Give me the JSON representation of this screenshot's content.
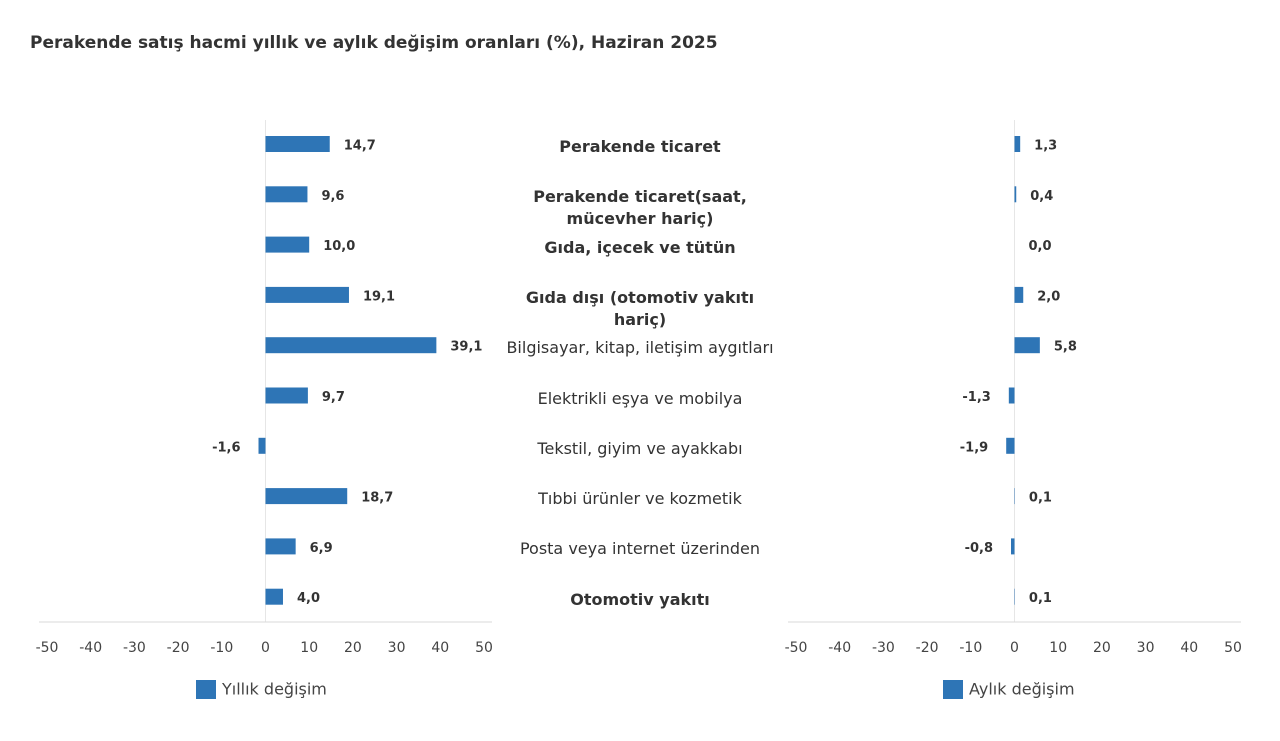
{
  "chart_data": {
    "type": "bar",
    "orientation": "horizontal",
    "title": "Perakende satış hacmi yıllık ve aylık değişim oranları (%), Haziran 2025",
    "categories": [
      "Perakende ticaret",
      "Perakende ticaret(saat, mücevher hariç)",
      "Gıda, içecek ve tütün",
      "Gıda dışı (otomotiv yakıtı hariç)",
      "Bilgisayar, kitap, iletişim aygıtları",
      "Elektrikli eşya ve mobilya",
      "Tekstil, giyim ve ayakkabı",
      "Tıbbi ürünler ve kozmetik",
      "Posta veya internet üzerinden",
      "Otomotiv yakıtı"
    ],
    "series": [
      {
        "name": "Yıllık değişim",
        "color": "#2e75b6",
        "values": [
          14.7,
          9.6,
          10.0,
          19.1,
          39.1,
          9.7,
          -1.6,
          18.7,
          6.9,
          4.0
        ],
        "value_labels": [
          "14,7",
          "9,6",
          "10,0",
          "19,1",
          "39,1",
          "9,7",
          "-1,6",
          "18,7",
          "6,9",
          "4,0"
        ]
      },
      {
        "name": "Aylık değişim",
        "color": "#2e75b6",
        "values": [
          1.3,
          0.4,
          0.0,
          2.0,
          5.8,
          -1.3,
          -1.9,
          0.1,
          -0.8,
          0.1
        ],
        "value_labels": [
          "1,3",
          "0,4",
          "0,0",
          "2,0",
          "5,8",
          "-1,3",
          "-1,9",
          "0,1",
          "-0,8",
          "0,1"
        ]
      }
    ],
    "xlim": [
      -50,
      50
    ],
    "xticks": [
      -50,
      -40,
      -30,
      -20,
      -10,
      0,
      10,
      20,
      30,
      40,
      50
    ]
  }
}
